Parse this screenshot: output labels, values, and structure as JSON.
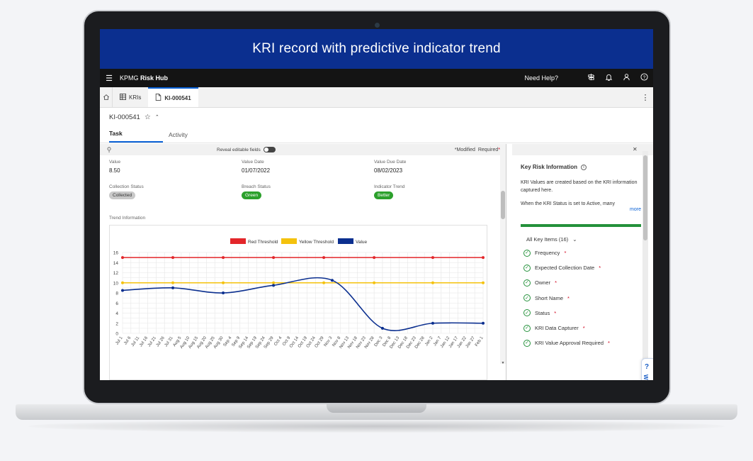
{
  "banner": {
    "title": "KRI record with predictive indicator trend"
  },
  "topbar": {
    "menu_icon": "hamburger-menu-icon",
    "brand_prefix": "KPMG",
    "brand_suffix": "Risk Hub",
    "help_label": "Need Help?",
    "icons": [
      "signpost-icon",
      "bell-icon",
      "user-icon",
      "help-circle-icon"
    ]
  },
  "tabs": {
    "home_icon": "home-icon",
    "items": [
      {
        "label": "KRIs",
        "icon": "table-icon"
      },
      {
        "label": "KI-000541",
        "icon": "document-icon",
        "active": true
      }
    ],
    "more_icon": "kebab-icon"
  },
  "record": {
    "id": "KI-000541"
  },
  "subtabs": [
    "Task",
    "Activity"
  ],
  "toolstrip": {
    "reveal_label": "Reveal editable fields",
    "modified_label": "*Modified",
    "required_label": "Required"
  },
  "fields": {
    "value": {
      "label": "Value",
      "value": "8.50"
    },
    "value_date": {
      "label": "Value Date",
      "value": "01/07/2022"
    },
    "value_due_date": {
      "label": "Value Due Date",
      "value": "08/02/2023"
    },
    "collection_status": {
      "label": "Collection Status",
      "value": "Collected"
    },
    "breach_status": {
      "label": "Breach Status",
      "value": "Green"
    },
    "indicator_trend": {
      "label": "Indicator Trend",
      "value": "Better"
    }
  },
  "trend_label": "Trend Information",
  "chart_data": {
    "type": "line",
    "x": [
      "Jul 1",
      "Jul 6",
      "Jul 11",
      "Jul 16",
      "Jul 21",
      "Jul 26",
      "Jul 31",
      "Aug 5",
      "Aug 10",
      "Aug 15",
      "Aug 20",
      "Aug 25",
      "Aug 30",
      "Sep 4",
      "Sep 9",
      "Sep 14",
      "Sep 19",
      "Sep 24",
      "Sep 29",
      "Oct 4",
      "Oct 9",
      "Oct 14",
      "Oct 19",
      "Oct 24",
      "Oct 29",
      "Nov 3",
      "Nov 8",
      "Nov 13",
      "Nov 18",
      "Nov 23",
      "Nov 28",
      "Dec 3",
      "Dec 8",
      "Dec 13",
      "Dec 18",
      "Dec 23",
      "Dec 28",
      "Jan 2",
      "Jan 7",
      "Jan 12",
      "Jan 17",
      "Jan 22",
      "Jan 27",
      "Feb 1"
    ],
    "series": [
      {
        "name": "Red Threshold",
        "color": "#e3262a",
        "points": [
          [
            "Jul 1",
            15
          ],
          [
            "Jul 31",
            15
          ],
          [
            "Aug 30",
            15
          ],
          [
            "Sep 29",
            15
          ],
          [
            "Oct 29",
            15
          ],
          [
            "Nov 28",
            15
          ],
          [
            "Jan 2",
            15
          ],
          [
            "Feb 1",
            15
          ]
        ]
      },
      {
        "name": "Yellow Threshold",
        "color": "#f4c20d",
        "points": [
          [
            "Jul 1",
            10
          ],
          [
            "Jul 31",
            10
          ],
          [
            "Aug 30",
            10
          ],
          [
            "Sep 29",
            10
          ],
          [
            "Oct 29",
            10
          ],
          [
            "Nov 28",
            10
          ],
          [
            "Jan 2",
            10
          ],
          [
            "Feb 1",
            10
          ]
        ]
      },
      {
        "name": "Value",
        "color": "#0b2f8f",
        "points": [
          [
            "Jul 1",
            8.5
          ],
          [
            "Jul 31",
            9
          ],
          [
            "Aug 30",
            8
          ],
          [
            "Sep 29",
            9.5
          ],
          [
            "Nov 3",
            10.5
          ],
          [
            "Dec 3",
            1
          ],
          [
            "Jan 2",
            2
          ],
          [
            "Feb 1",
            2
          ]
        ]
      }
    ],
    "yticks": [
      0,
      2,
      4,
      6,
      8,
      10,
      12,
      14,
      16
    ],
    "ylim": [
      0,
      16
    ],
    "grid": true,
    "legend_position": "top-center"
  },
  "right_panel": {
    "close_icon": "close-icon",
    "title": "Key Risk Information",
    "info_icon": "info-icon",
    "para1": "KRI Values are created based on the KRI information captured here.",
    "para2": "When the KRI Status is set to Active, many",
    "more": "more",
    "all_items": "All Key Items (16)",
    "chevron_icon": "chevron-down-icon",
    "items": [
      "Frequency",
      "Expected Collection Date",
      "Owner",
      "Short Name",
      "Status",
      "KRI Data Capturer",
      "KRI Value Approval Required"
    ]
  },
  "walk": {
    "q": "?",
    "label": "Walk Me Through"
  }
}
